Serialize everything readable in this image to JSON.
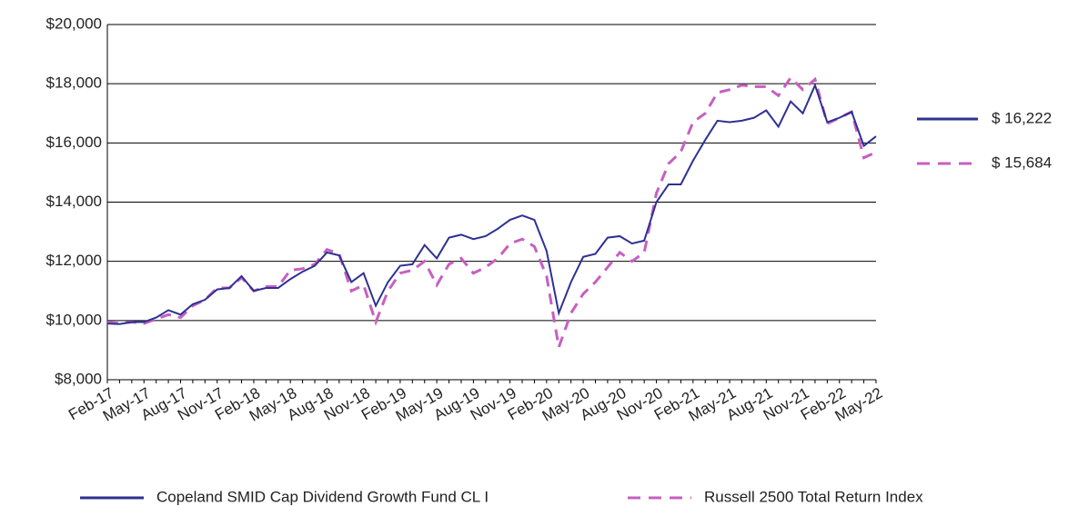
{
  "chart_data": {
    "type": "line",
    "categories": [
      "Feb-17",
      null,
      null,
      "May-17",
      null,
      null,
      "Aug-17",
      null,
      null,
      "Nov-17",
      null,
      null,
      "Feb-18",
      null,
      null,
      "May-18",
      null,
      null,
      "Aug-18",
      null,
      null,
      "Nov-18",
      null,
      null,
      "Feb-19",
      null,
      null,
      "May-19",
      null,
      null,
      "Aug-19",
      null,
      null,
      "Nov-19",
      null,
      null,
      "Feb-20",
      null,
      null,
      "May-20",
      null,
      null,
      "Aug-20",
      null,
      null,
      "Nov-20",
      null,
      null,
      "Feb-21",
      null,
      null,
      "May-21",
      null,
      null,
      "Aug-21",
      null,
      null,
      "Nov-21",
      null,
      null,
      "Feb-22",
      null,
      null,
      "May-22"
    ],
    "series": [
      {
        "name": "Copeland SMID Cap Dividend Growth Fund CL I",
        "color": "#2e3192",
        "dash": false,
        "end_label": "$ 16,222",
        "values": [
          9900,
          9880,
          9950,
          9950,
          10100,
          10350,
          10200,
          10550,
          10700,
          11050,
          11100,
          11500,
          11000,
          11100,
          11100,
          11400,
          11650,
          11850,
          12300,
          12200,
          11300,
          11600,
          10500,
          11300,
          11850,
          11900,
          12550,
          12100,
          12800,
          12900,
          12750,
          12850,
          13100,
          13400,
          13550,
          13400,
          12350,
          10250,
          11300,
          12150,
          12250,
          12800,
          12850,
          12600,
          12700,
          14000,
          14600,
          14600,
          15400,
          16100,
          16750,
          16700,
          16750,
          16850,
          17100,
          16550,
          17400,
          17000,
          17950,
          16700,
          16850,
          17050,
          15900,
          16222
        ]
      },
      {
        "name": "Russell 2500 Total Return Index",
        "color": "#c75fc0",
        "dash": true,
        "end_label": "$ 15,684",
        "values": [
          9950,
          9900,
          9950,
          9900,
          10050,
          10200,
          10100,
          10500,
          10700,
          11100,
          11100,
          11450,
          11000,
          11150,
          11150,
          11700,
          11750,
          11900,
          12400,
          12250,
          11000,
          11200,
          9950,
          11000,
          11600,
          11700,
          12000,
          11200,
          11900,
          12100,
          11600,
          11800,
          12100,
          12600,
          12750,
          12500,
          11500,
          9100,
          10250,
          10900,
          11300,
          11800,
          12300,
          12000,
          12300,
          14300,
          15300,
          15700,
          16700,
          17000,
          17700,
          17800,
          17950,
          17900,
          17900,
          17600,
          18200,
          17800,
          18150,
          16650,
          16850,
          17050,
          15500,
          15684
        ]
      }
    ],
    "ylim": [
      8000,
      20000
    ],
    "yticks": [
      {
        "value": 8000,
        "label": "$8,000"
      },
      {
        "value": 10000,
        "label": "$10,000"
      },
      {
        "value": 12000,
        "label": "$12,000"
      },
      {
        "value": 14000,
        "label": "$14,000"
      },
      {
        "value": 16000,
        "label": "$16,000"
      },
      {
        "value": 18000,
        "label": "$18,000"
      },
      {
        "value": 20000,
        "label": "$20,000"
      }
    ],
    "grid": true
  }
}
